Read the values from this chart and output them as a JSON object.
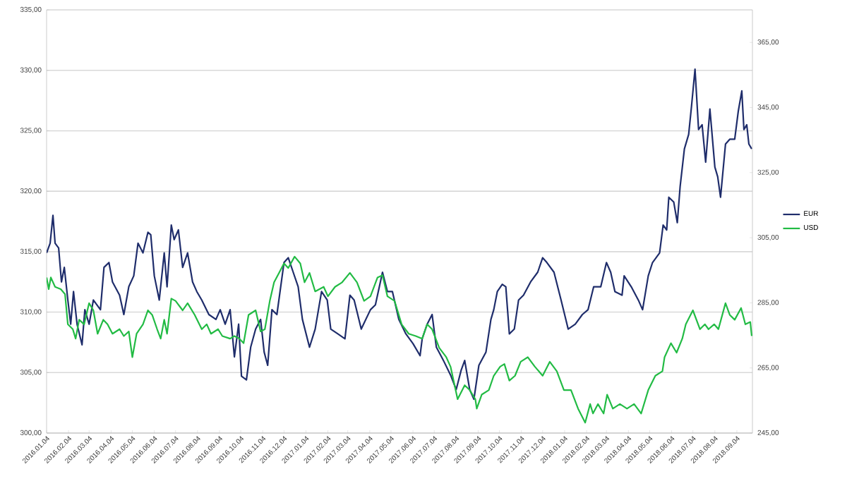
{
  "chart_data": {
    "type": "line",
    "xlim": [
      "2016-01-04",
      "2018-09-26"
    ],
    "xticks": [
      {
        "value": "2016-01-04",
        "label": "2016.01.04"
      },
      {
        "value": "2016-02-04",
        "label": "2016.02.04"
      },
      {
        "value": "2016-03-04",
        "label": "2016.03.04"
      },
      {
        "value": "2016-04-04",
        "label": "2016.04.04"
      },
      {
        "value": "2016-05-04",
        "label": "2016.05.04"
      },
      {
        "value": "2016-06-04",
        "label": "2016.06.04"
      },
      {
        "value": "2016-07-04",
        "label": "2016.07.04"
      },
      {
        "value": "2016-08-04",
        "label": "2016.08.04"
      },
      {
        "value": "2016-09-04",
        "label": "2016.09.04"
      },
      {
        "value": "2016-10-04",
        "label": "2016.10.04"
      },
      {
        "value": "2016-11-04",
        "label": "2016.11.04"
      },
      {
        "value": "2016-12-04",
        "label": "2016.12.04"
      },
      {
        "value": "2017-01-04",
        "label": "2017.01.04"
      },
      {
        "value": "2017-02-04",
        "label": "2017.02.04"
      },
      {
        "value": "2017-03-04",
        "label": "2017.03.04"
      },
      {
        "value": "2017-04-04",
        "label": "2017.04.04"
      },
      {
        "value": "2017-05-04",
        "label": "2017.05.04"
      },
      {
        "value": "2017-06-04",
        "label": "2017.06.04"
      },
      {
        "value": "2017-07-04",
        "label": "2017.07.04"
      },
      {
        "value": "2017-08-04",
        "label": "2017.08.04"
      },
      {
        "value": "2017-09-04",
        "label": "2017.09.04"
      },
      {
        "value": "2017-10-04",
        "label": "2017.10.04"
      },
      {
        "value": "2017-11-04",
        "label": "2017.11.04"
      },
      {
        "value": "2017-12-04",
        "label": "2017.12.04"
      },
      {
        "value": "2018-01-04",
        "label": "2018.01.04"
      },
      {
        "value": "2018-02-04",
        "label": "2018.02.04"
      },
      {
        "value": "2018-03-04",
        "label": "2018.03.04"
      },
      {
        "value": "2018-04-04",
        "label": "2018.04.04"
      },
      {
        "value": "2018-05-04",
        "label": "2018.05.04"
      },
      {
        "value": "2018-06-04",
        "label": "2018.06.04"
      },
      {
        "value": "2018-07-04",
        "label": "2018.07.04"
      },
      {
        "value": "2018-08-04",
        "label": "2018.08.04"
      },
      {
        "value": "2018-09-04",
        "label": "2018.09.04"
      }
    ],
    "ylim": [
      300,
      335
    ],
    "yticks": [
      {
        "value": 300,
        "label": "300,00"
      },
      {
        "value": 305,
        "label": "305,00"
      },
      {
        "value": 310,
        "label": "310,00"
      },
      {
        "value": 315,
        "label": "315,00"
      },
      {
        "value": 320,
        "label": "320,00"
      },
      {
        "value": 325,
        "label": "325,00"
      },
      {
        "value": 330,
        "label": "330,00"
      },
      {
        "value": 335,
        "label": "335,00"
      }
    ],
    "y2lim": [
      245,
      375
    ],
    "y2ticks": [
      {
        "value": 245,
        "label": "245,00"
      },
      {
        "value": 265,
        "label": "265,00"
      },
      {
        "value": 285,
        "label": "285,00"
      },
      {
        "value": 305,
        "label": "305,00"
      },
      {
        "value": 325,
        "label": "325,00"
      },
      {
        "value": 345,
        "label": "345,00"
      },
      {
        "value": 365,
        "label": "365,00"
      }
    ],
    "grid": "y",
    "legend": "right",
    "marker": "none",
    "line_style": "solid",
    "series": [
      {
        "name": "EUR",
        "color": "#1f2d6b",
        "x": [
          "2016-01-04",
          "2016-01-09",
          "2016-01-13",
          "2016-01-16",
          "2016-01-21",
          "2016-01-25",
          "2016-01-29",
          "2016-02-03",
          "2016-02-07",
          "2016-02-11",
          "2016-02-16",
          "2016-02-23",
          "2016-02-27",
          "2016-03-04",
          "2016-03-10",
          "2016-03-20",
          "2016-03-25",
          "2016-04-01",
          "2016-04-06",
          "2016-04-16",
          "2016-04-22",
          "2016-04-29",
          "2016-05-06",
          "2016-05-12",
          "2016-05-19",
          "2016-05-26",
          "2016-05-30",
          "2016-06-04",
          "2016-06-11",
          "2016-06-18",
          "2016-06-22",
          "2016-06-28",
          "2016-07-02",
          "2016-07-08",
          "2016-07-14",
          "2016-07-21",
          "2016-07-28",
          "2016-08-03",
          "2016-08-10",
          "2016-08-20",
          "2016-08-30",
          "2016-09-05",
          "2016-09-12",
          "2016-09-19",
          "2016-09-25",
          "2016-10-01",
          "2016-10-05",
          "2016-10-12",
          "2016-10-18",
          "2016-10-25",
          "2016-11-01",
          "2016-11-06",
          "2016-11-11",
          "2016-11-17",
          "2016-11-24",
          "2016-12-04",
          "2016-12-10",
          "2016-12-17",
          "2016-12-24",
          "2016-12-30",
          "2017-01-09",
          "2017-01-17",
          "2017-01-26",
          "2017-02-03",
          "2017-02-08",
          "2017-02-18",
          "2017-02-28",
          "2017-03-07",
          "2017-03-13",
          "2017-03-23",
          "2017-04-05",
          "2017-04-12",
          "2017-04-22",
          "2017-04-29",
          "2017-05-06",
          "2017-05-15",
          "2017-05-25",
          "2017-06-04",
          "2017-06-14",
          "2017-06-17",
          "2017-06-24",
          "2017-07-01",
          "2017-07-07",
          "2017-07-17",
          "2017-07-27",
          "2017-08-04",
          "2017-08-11",
          "2017-08-16",
          "2017-08-23",
          "2017-08-29",
          "2017-09-05",
          "2017-09-15",
          "2017-09-22",
          "2017-09-26",
          "2017-10-01",
          "2017-10-08",
          "2017-10-13",
          "2017-10-18",
          "2017-10-25",
          "2017-10-31",
          "2017-11-07",
          "2017-11-17",
          "2017-11-27",
          "2017-12-04",
          "2017-12-10",
          "2017-12-20",
          "2017-12-30",
          "2018-01-09",
          "2018-01-19",
          "2018-01-29",
          "2018-02-06",
          "2018-02-14",
          "2018-02-24",
          "2018-03-04",
          "2018-03-10",
          "2018-03-16",
          "2018-03-26",
          "2018-03-29",
          "2018-04-08",
          "2018-04-18",
          "2018-04-24",
          "2018-05-02",
          "2018-05-08",
          "2018-05-18",
          "2018-05-23",
          "2018-05-28",
          "2018-05-31",
          "2018-06-07",
          "2018-06-12",
          "2018-06-16",
          "2018-06-22",
          "2018-06-28",
          "2018-07-02",
          "2018-07-07",
          "2018-07-12",
          "2018-07-17",
          "2018-07-22",
          "2018-07-28",
          "2018-08-04",
          "2018-08-08",
          "2018-08-12",
          "2018-08-19",
          "2018-08-25",
          "2018-09-01",
          "2018-09-06",
          "2018-09-11",
          "2018-09-14",
          "2018-09-18",
          "2018-09-21",
          "2018-09-25"
        ],
        "values": [
          314.9,
          315.7,
          318.0,
          315.7,
          315.3,
          312.5,
          313.7,
          311.0,
          309.0,
          311.7,
          309.0,
          307.3,
          310.2,
          309.0,
          311.0,
          310.2,
          313.7,
          314.1,
          312.5,
          311.4,
          309.8,
          312.1,
          313.0,
          315.7,
          314.9,
          316.6,
          316.4,
          313.0,
          311.0,
          314.9,
          312.1,
          317.2,
          316.0,
          316.8,
          313.7,
          314.9,
          312.5,
          311.7,
          311.0,
          309.8,
          309.4,
          310.2,
          309.0,
          310.2,
          306.3,
          309.0,
          304.7,
          304.4,
          307.1,
          308.6,
          309.4,
          306.7,
          305.6,
          310.2,
          309.8,
          314.1,
          314.5,
          313.3,
          312.1,
          309.4,
          307.1,
          308.6,
          311.7,
          311.0,
          308.6,
          308.2,
          307.8,
          311.4,
          311.0,
          308.6,
          310.2,
          310.6,
          313.3,
          311.7,
          311.7,
          309.4,
          308.2,
          307.4,
          306.4,
          307.8,
          309.0,
          309.8,
          307.1,
          306.0,
          304.8,
          303.6,
          305.2,
          306.0,
          303.6,
          302.8,
          305.6,
          306.7,
          309.4,
          310.2,
          311.7,
          312.3,
          312.1,
          308.2,
          308.6,
          311.0,
          311.4,
          312.5,
          313.3,
          314.5,
          314.1,
          313.3,
          311.0,
          308.6,
          309.0,
          309.8,
          310.2,
          312.1,
          312.1,
          314.1,
          313.3,
          311.7,
          311.4,
          313.0,
          312.1,
          311.0,
          310.2,
          313.0,
          314.1,
          314.9,
          317.2,
          316.8,
          319.5,
          319.1,
          317.4,
          320.4,
          323.5,
          324.7,
          327.0,
          330.1,
          325.1,
          325.5,
          322.4,
          326.8,
          322.0,
          321.2,
          319.5,
          323.9,
          324.3,
          324.3,
          326.6,
          328.3,
          325.1,
          325.5,
          323.9,
          323.5
        ]
      },
      {
        "name": "USD",
        "color": "#22bb44",
        "axis": "y2",
        "x": [
          "2016-01-04",
          "2016-01-07",
          "2016-01-10",
          "2016-01-16",
          "2016-01-24",
          "2016-01-30",
          "2016-02-03",
          "2016-02-10",
          "2016-02-14",
          "2016-02-19",
          "2016-02-26",
          "2016-03-04",
          "2016-03-10",
          "2016-03-16",
          "2016-03-24",
          "2016-03-30",
          "2016-04-06",
          "2016-04-16",
          "2016-04-22",
          "2016-04-29",
          "2016-05-04",
          "2016-05-10",
          "2016-05-19",
          "2016-05-26",
          "2016-06-01",
          "2016-06-08",
          "2016-06-13",
          "2016-06-18",
          "2016-06-22",
          "2016-06-28",
          "2016-07-04",
          "2016-07-14",
          "2016-07-21",
          "2016-07-31",
          "2016-08-10",
          "2016-08-17",
          "2016-08-23",
          "2016-09-02",
          "2016-09-08",
          "2016-09-19",
          "2016-09-25",
          "2016-10-02",
          "2016-10-08",
          "2016-10-15",
          "2016-10-25",
          "2016-11-01",
          "2016-11-07",
          "2016-11-14",
          "2016-11-20",
          "2016-11-27",
          "2016-12-04",
          "2016-12-10",
          "2016-12-19",
          "2016-12-27",
          "2017-01-02",
          "2017-01-09",
          "2017-01-17",
          "2017-01-29",
          "2017-02-04",
          "2017-02-14",
          "2017-02-24",
          "2017-03-07",
          "2017-03-17",
          "2017-03-27",
          "2017-04-05",
          "2017-04-15",
          "2017-04-22",
          "2017-04-29",
          "2017-05-09",
          "2017-05-19",
          "2017-05-29",
          "2017-06-08",
          "2017-06-17",
          "2017-06-24",
          "2017-07-01",
          "2017-07-11",
          "2017-07-21",
          "2017-07-27",
          "2017-08-06",
          "2017-08-16",
          "2017-08-23",
          "2017-08-31",
          "2017-09-02",
          "2017-09-09",
          "2017-09-19",
          "2017-09-26",
          "2017-10-05",
          "2017-10-11",
          "2017-10-18",
          "2017-10-26",
          "2017-11-03",
          "2017-11-13",
          "2017-11-23",
          "2017-12-04",
          "2017-12-14",
          "2017-12-24",
          "2018-01-03",
          "2018-01-13",
          "2018-01-23",
          "2018-02-02",
          "2018-02-09",
          "2018-02-13",
          "2018-02-20",
          "2018-02-28",
          "2018-03-05",
          "2018-03-13",
          "2018-03-23",
          "2018-04-02",
          "2018-04-12",
          "2018-04-22",
          "2018-05-02",
          "2018-05-12",
          "2018-05-22",
          "2018-05-25",
          "2018-06-03",
          "2018-06-11",
          "2018-06-19",
          "2018-06-24",
          "2018-07-04",
          "2018-07-09",
          "2018-07-14",
          "2018-07-21",
          "2018-07-26",
          "2018-08-03",
          "2018-08-09",
          "2018-08-19",
          "2018-08-25",
          "2018-09-01",
          "2018-09-10",
          "2018-09-16",
          "2018-09-23",
          "2018-09-25"
        ],
        "values": [
          292.8,
          289.2,
          292.8,
          289.9,
          289.2,
          287.7,
          278.4,
          276.9,
          274.0,
          279.8,
          278.4,
          284.9,
          282.7,
          275.5,
          279.8,
          278.4,
          275.5,
          276.9,
          274.8,
          276.2,
          268.3,
          275.5,
          278.4,
          282.7,
          281.3,
          276.9,
          274.0,
          279.8,
          275.5,
          286.3,
          285.6,
          282.7,
          284.9,
          281.3,
          276.9,
          278.4,
          275.5,
          276.9,
          274.8,
          274.0,
          274.8,
          274.0,
          272.6,
          281.3,
          282.7,
          276.2,
          276.9,
          285.6,
          291.3,
          294.2,
          297.1,
          295.7,
          299.2,
          297.1,
          291.3,
          294.2,
          288.5,
          289.9,
          287.0,
          289.9,
          291.3,
          294.2,
          291.3,
          285.6,
          287.0,
          292.8,
          293.5,
          287.0,
          285.6,
          278.4,
          275.5,
          274.8,
          274.0,
          278.4,
          276.9,
          271.2,
          268.3,
          265.4,
          255.4,
          259.7,
          258.2,
          255.4,
          252.5,
          256.8,
          258.2,
          262.6,
          265.4,
          266.2,
          261.1,
          262.6,
          266.9,
          268.3,
          265.4,
          262.6,
          266.9,
          264.0,
          258.2,
          258.2,
          252.5,
          248.2,
          253.9,
          251.0,
          253.9,
          251.0,
          256.8,
          252.5,
          253.9,
          252.5,
          253.9,
          251.0,
          258.2,
          262.6,
          264.0,
          268.3,
          272.6,
          269.7,
          274.0,
          278.4,
          282.7,
          279.8,
          276.9,
          278.4,
          276.9,
          278.4,
          276.9,
          284.9,
          281.3,
          279.8,
          283.4,
          278.4,
          279.1,
          274.8
        ]
      }
    ]
  }
}
